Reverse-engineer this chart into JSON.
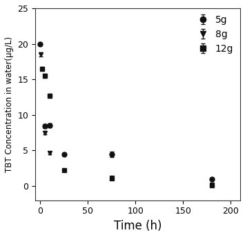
{
  "series": [
    {
      "label": "5g",
      "marker": "o",
      "color": "#111111",
      "x": [
        0,
        5,
        10,
        25,
        75,
        180
      ],
      "y": [
        20.0,
        8.4,
        8.5,
        4.5,
        4.5,
        1.0
      ],
      "yerr": [
        0.2,
        0.3,
        0.3,
        0.2,
        0.4,
        0.2
      ]
    },
    {
      "label": "8g",
      "marker": "v",
      "color": "#111111",
      "x": [
        1,
        5,
        10,
        75,
        180
      ],
      "y": [
        18.5,
        7.5,
        4.7,
        1.2,
        0.25
      ],
      "yerr": [
        0.25,
        0.25,
        0.2,
        0.2,
        0.1
      ]
    },
    {
      "label": "12g",
      "marker": "s",
      "color": "#111111",
      "x": [
        2,
        5,
        10,
        25,
        75,
        180
      ],
      "y": [
        16.5,
        15.5,
        12.7,
        2.2,
        1.1,
        0.15
      ],
      "yerr": [
        0.25,
        0.25,
        0.25,
        0.2,
        0.15,
        0.08
      ]
    }
  ],
  "xlabel": "Time (h)",
  "ylabel": "TBT Concentration in water(μg/L)",
  "xlim": [
    -5,
    210
  ],
  "ylim": [
    -2,
    25
  ],
  "yticks": [
    0,
    5,
    10,
    15,
    20,
    25
  ],
  "xticks": [
    0,
    50,
    100,
    150,
    200
  ],
  "legend_loc": "upper right",
  "markersize": 5,
  "capsize": 2.5,
  "elinewidth": 0.8,
  "background_color": "#ffffff",
  "xlabel_fontsize": 12,
  "ylabel_fontsize": 8.5,
  "tick_fontsize": 9,
  "legend_fontsize": 10
}
